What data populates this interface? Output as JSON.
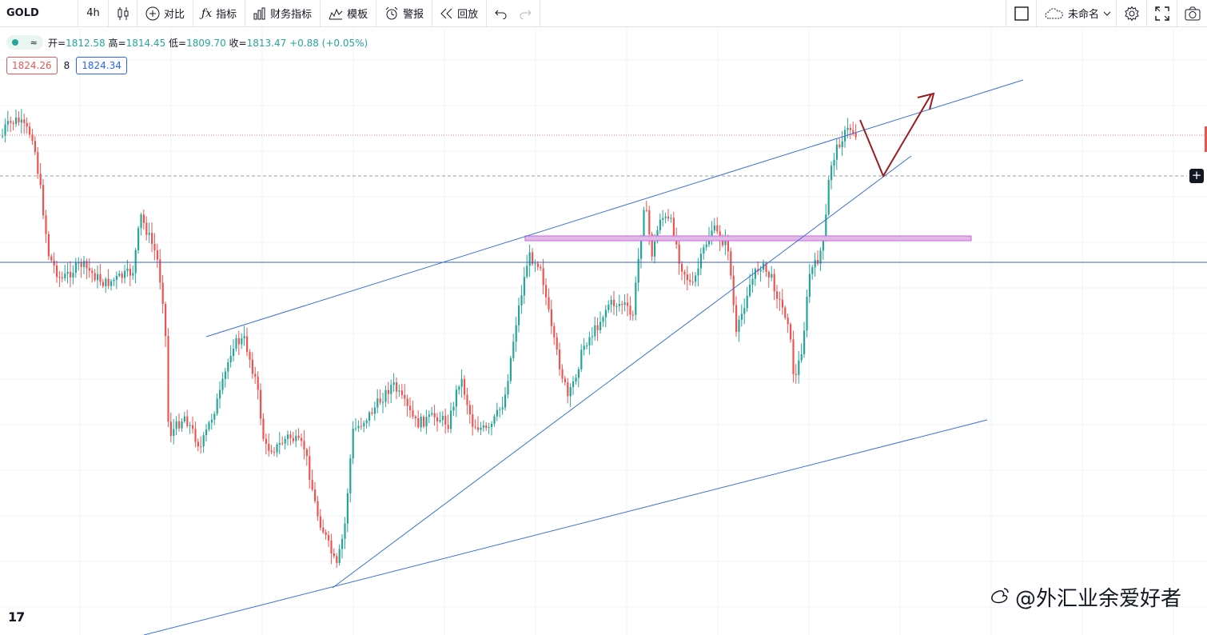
{
  "toolbar": {
    "symbol": "GOLD",
    "interval": "4h",
    "compare": "对比",
    "indicators": "指标",
    "financials": "财务指标",
    "templates": "模板",
    "alert": "警报",
    "replay": "回放",
    "layout_name": "未命名"
  },
  "legend": {
    "open_label": "开=",
    "open": "1812.58",
    "high_label": "高=",
    "high": "1814.45",
    "low_label": "低=",
    "low": "1809.70",
    "close_label": "收=",
    "close": "1813.47",
    "change": "+0.88 (+0.05%)",
    "toggle_symbol": "≈"
  },
  "price_boxes": {
    "bid": "1824.26",
    "spread": "8",
    "ask": "1824.34"
  },
  "tv_logo": "17",
  "watermark": "@外汇业余爱好者",
  "colors": {
    "up": "#26a69a",
    "down": "#ef5350",
    "trendline": "#3a6fd8",
    "zone": "#e1b8e8",
    "arrow": "#9b1c1c"
  },
  "icons": [
    "candles-icon",
    "plus-circle-icon",
    "fx-icon",
    "bars-icon",
    "templates-icon",
    "alarm-icon",
    "replay-icon",
    "undo-icon",
    "redo-icon",
    "square-icon",
    "cloud-icon",
    "chevron-down-icon",
    "gear-icon",
    "fullscreen-icon",
    "camera-icon"
  ],
  "chart_data": {
    "type": "candlestick",
    "symbol": "GOLD",
    "interval": "4h",
    "last_ohlc": {
      "open": 1812.58,
      "high": 1814.45,
      "low": 1809.7,
      "close": 1813.47,
      "change": 0.88,
      "change_pct": 0.05
    },
    "bid": 1824.26,
    "ask": 1824.34,
    "drawings": [
      "ascending channel upper trendline",
      "ascending support trendline",
      "lower channel trendline",
      "horizontal resistance zone",
      "horizontal support line",
      "projected path arrow: pullback then breakout"
    ],
    "grid": true
  }
}
